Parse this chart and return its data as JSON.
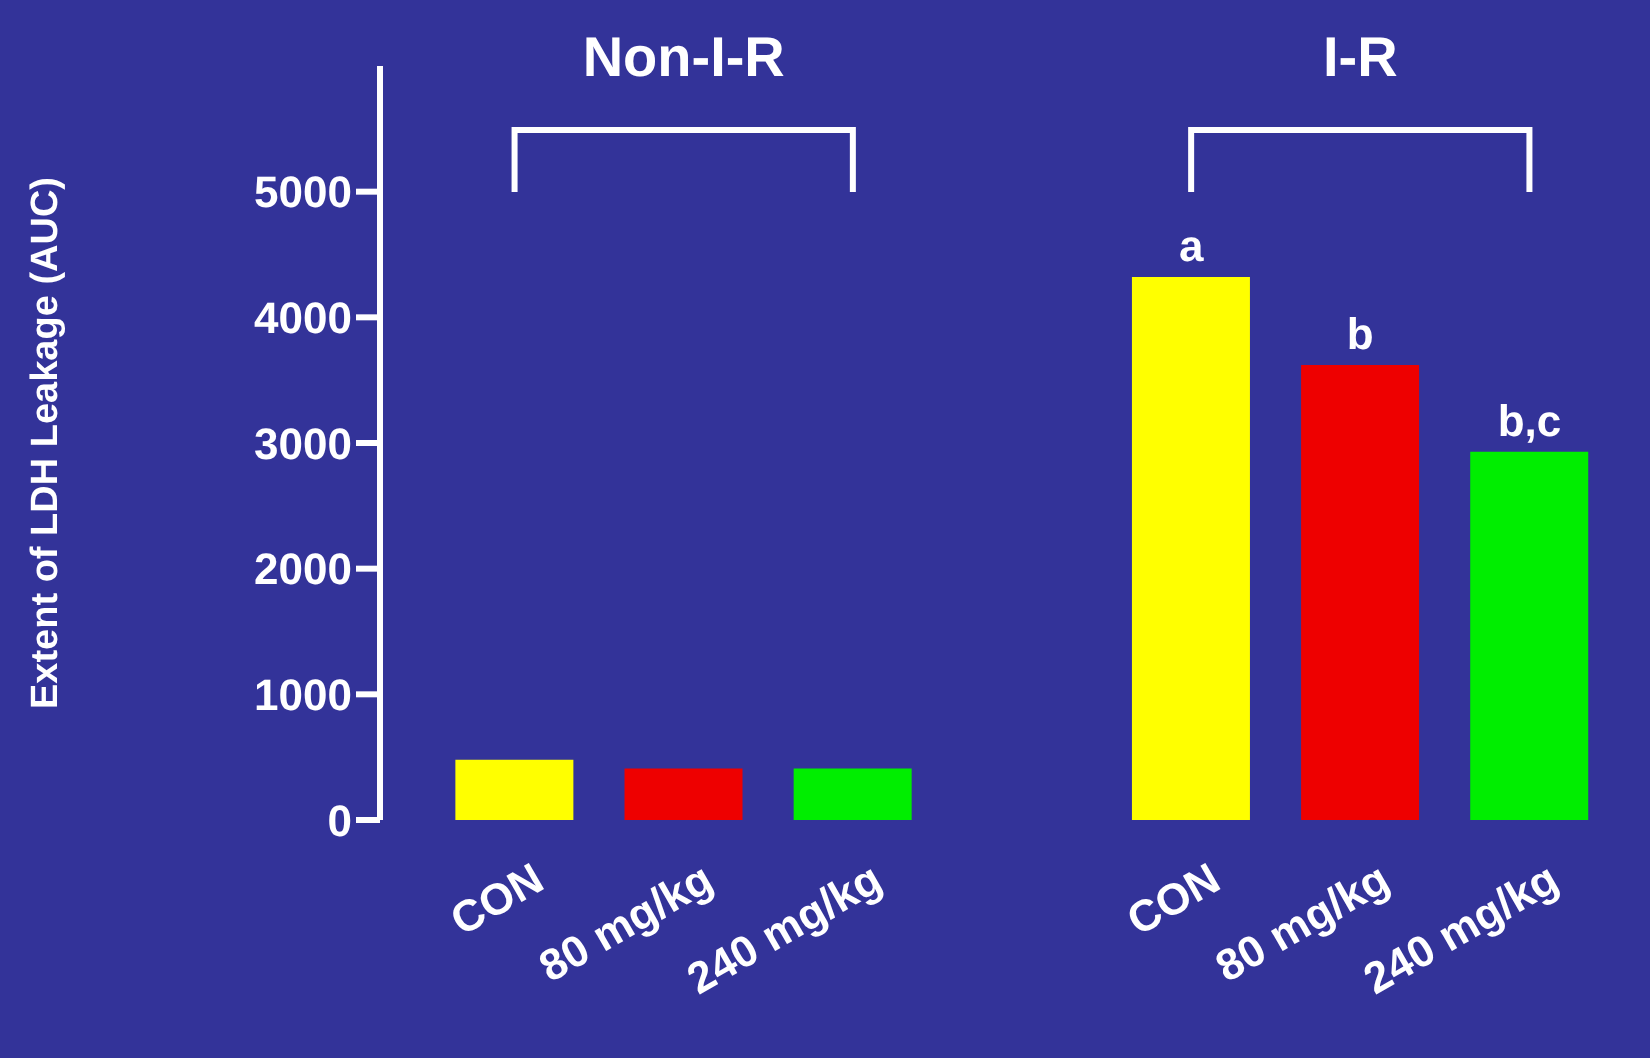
{
  "chart_data": {
    "type": "bar",
    "ylabel": "Extent of LDH Leakage (AUC)",
    "categories": [
      "CON",
      "80 mg/kg",
      "240 mg/kg",
      null,
      "CON",
      "80 mg/kg",
      "240 mg/kg"
    ],
    "values": [
      480,
      410,
      410,
      null,
      4320,
      3620,
      2930
    ],
    "colors": [
      "#ffff00",
      "#ee0000",
      "#00ee00",
      "#000000",
      "#ffff00",
      "#ee0000",
      "#00ee00"
    ],
    "value_labels": [
      null,
      null,
      null,
      null,
      "a",
      "b",
      "b,c"
    ],
    "annotations": [
      "Non-I-R",
      "I-R"
    ],
    "ylim": [
      0,
      6000
    ],
    "yticks": [
      0,
      1000,
      2000,
      3000,
      4000,
      5000
    ],
    "grid": false,
    "legend": false
  }
}
